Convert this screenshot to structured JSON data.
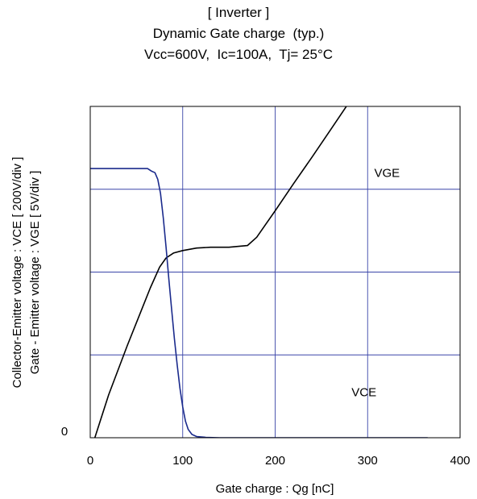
{
  "chart_data": {
    "type": "line",
    "title_lines": [
      "[ Inverter ]",
      "Dynamic Gate charge  (typ.)",
      "Vcc=600V,  Ic=100A,  Tj= 25°C"
    ],
    "xlabel": "Gate charge : Qg [nC]",
    "ylabel_lines": [
      "Collector-Emitter voltage : VCE [ 200V/div ]",
      "Gate - Emitter voltage  :  VGE        [ 5V/div ]"
    ],
    "xlim": [
      0,
      400
    ],
    "ylim_div": [
      0,
      4
    ],
    "x_ticks": [
      "0",
      "100",
      "200",
      "300",
      "400"
    ],
    "y_tick_labels": [
      {
        "value": 0,
        "label": "0"
      }
    ],
    "grid": true,
    "series": [
      {
        "name": "VGE",
        "color": "#000000",
        "points": [
          [
            5,
            0
          ],
          [
            20,
            0.52
          ],
          [
            40,
            1.11
          ],
          [
            55,
            1.53
          ],
          [
            65,
            1.81
          ],
          [
            75,
            2.06
          ],
          [
            82,
            2.17
          ],
          [
            90,
            2.23
          ],
          [
            100,
            2.26
          ],
          [
            115,
            2.29
          ],
          [
            130,
            2.3
          ],
          [
            150,
            2.3
          ],
          [
            170,
            2.32
          ],
          [
            180,
            2.42
          ],
          [
            190,
            2.58
          ],
          [
            200,
            2.74
          ],
          [
            220,
            3.07
          ],
          [
            240,
            3.39
          ],
          [
            260,
            3.72
          ],
          [
            280,
            4.05
          ],
          [
            300,
            4.38
          ],
          [
            320,
            4.7
          ],
          [
            340,
            5.03
          ],
          [
            360,
            5.36
          ]
        ]
      },
      {
        "name": "VCE",
        "color": "#1a2a8c",
        "points": [
          [
            0,
            3.25
          ],
          [
            55,
            3.25
          ],
          [
            62,
            3.25
          ],
          [
            66,
            3.22
          ],
          [
            70,
            3.2
          ],
          [
            73,
            3.12
          ],
          [
            76,
            2.95
          ],
          [
            79,
            2.65
          ],
          [
            82,
            2.3
          ],
          [
            85,
            1.92
          ],
          [
            88,
            1.55
          ],
          [
            91,
            1.2
          ],
          [
            94,
            0.88
          ],
          [
            97,
            0.6
          ],
          [
            100,
            0.37
          ],
          [
            103,
            0.2
          ],
          [
            106,
            0.1
          ],
          [
            110,
            0.04
          ],
          [
            115,
            0.015
          ],
          [
            125,
            0.005
          ],
          [
            140,
            0
          ],
          [
            200,
            0
          ],
          [
            300,
            0
          ],
          [
            365,
            0
          ]
        ]
      }
    ],
    "annotations": [
      {
        "text": "VGE",
        "x": 321,
        "y": 3.15
      },
      {
        "text": "VCE",
        "x": 296,
        "y": 0.5
      }
    ]
  }
}
